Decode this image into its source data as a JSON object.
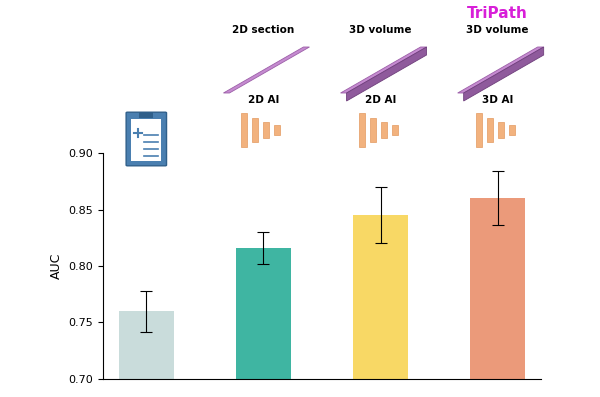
{
  "chart_data": {
    "type": "bar",
    "categories": [
      null,
      null,
      null,
      null
    ],
    "values": [
      0.76,
      0.816,
      0.845,
      0.86
    ],
    "errors": [
      0.018,
      0.014,
      0.025,
      0.024
    ],
    "colors": [
      "#c9dcdb",
      "#3fb5a2",
      "#f8d865",
      "#eb9a7a"
    ],
    "ylabel": "AUC",
    "ylim": [
      0.7,
      0.9
    ],
    "yticks": [
      {
        "value": 0.7,
        "label": "0.70"
      },
      {
        "value": 0.75,
        "label": "0.75"
      },
      {
        "value": 0.8,
        "label": "0.80"
      },
      {
        "value": 0.85,
        "label": "0.85"
      },
      {
        "value": 0.9,
        "label": "0.90"
      }
    ],
    "grid": false,
    "annotations": [
      [],
      [
        "2D section",
        "2D AI"
      ],
      [
        "3D volume",
        "2D AI"
      ],
      [
        "TriPath",
        "3D volume",
        "3D AI"
      ]
    ]
  }
}
